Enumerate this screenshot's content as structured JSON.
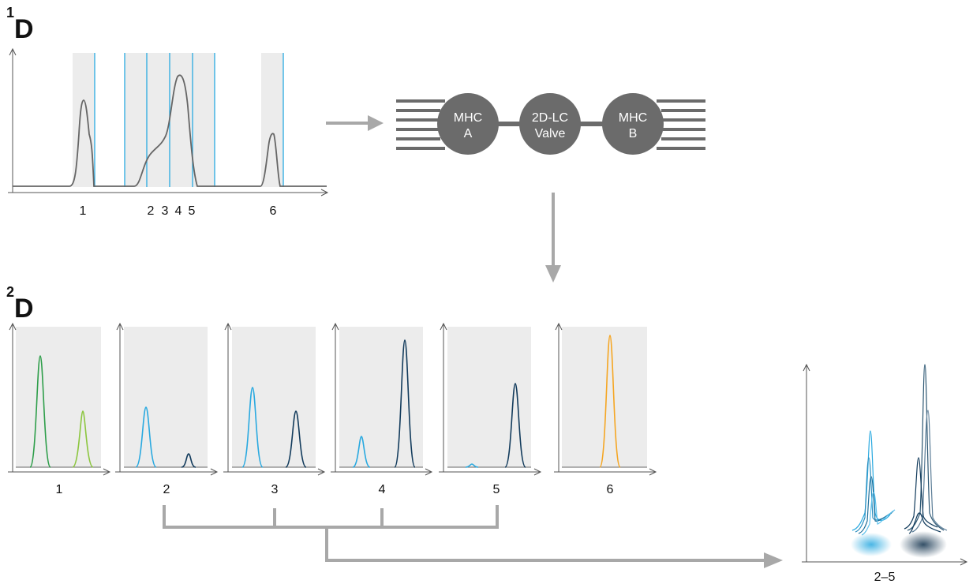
{
  "heading_1d": {
    "sup": "1",
    "letter": "D"
  },
  "heading_2d": {
    "sup": "2",
    "letter": "D"
  },
  "first_dim_labels": [
    "1",
    "2",
    "3",
    "4",
    "5",
    "6"
  ],
  "valves": [
    {
      "line1": "MHC",
      "line2": "A"
    },
    {
      "line1": "2D-LC",
      "line2": "Valve"
    },
    {
      "line1": "MHC",
      "line2": "B"
    }
  ],
  "second_dim_labels": [
    "1",
    "2",
    "3",
    "4",
    "5",
    "6"
  ],
  "overlay_label": "2–5",
  "colors": {
    "axis": "#555555",
    "trace": "#666666",
    "shade": "#ececec",
    "cut_line": "#29aae1",
    "valve": "#6b6b6b",
    "arrow": "#a8a8a8",
    "green_dark": "#2e9e4a",
    "green_light": "#8cc63f",
    "blue_light": "#29a9e0",
    "blue_dark": "#123b5c",
    "orange": "#f5a623"
  }
}
